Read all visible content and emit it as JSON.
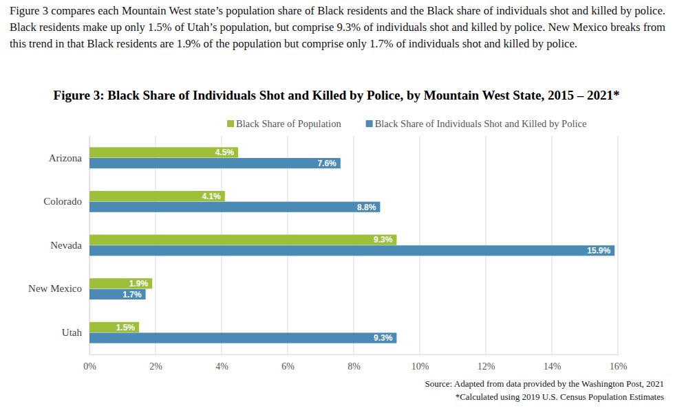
{
  "chart_data": {
    "type": "bar",
    "orientation": "horizontal",
    "title": "Figure 3: Black Share of Individuals Shot and Killed by Police, by Mountain West State, 2015 – 2021*",
    "annotations": [
      "Figure 3 compares each Mountain West state’s population share of Black residents and the Black share of individuals shot and killed by police. Black residents make up only 1.5% of Utah’s population, but comprise 9.3% of individuals shot and killed by police. New Mexico breaks from this trend in that Black residents are 1.9% of the population but comprise only 1.7% of individuals shot and killed by police.",
      "Source: Adapted from data provided by the Washington Post, 2021",
      "*Calculated using 2019 U.S. Census Population Estimates"
    ],
    "categories": [
      "Arizona",
      "Colorado",
      "Nevada",
      "New Mexico",
      "Utah"
    ],
    "series": [
      {
        "name": "Black Share of Population",
        "color": "#9dbf3a",
        "values": [
          4.5,
          4.1,
          9.3,
          1.9,
          1.5
        ],
        "value_labels": [
          "4.5%",
          "4.1%",
          "9.3%",
          "1.9%",
          "1.5%"
        ]
      },
      {
        "name": "Black Share of Individuals Shot and Killed by Police",
        "color": "#4a8ab5",
        "values": [
          7.6,
          8.8,
          15.9,
          1.7,
          9.3
        ],
        "value_labels": [
          "7.6%",
          "8.8%",
          "15.9%",
          "1.7%",
          "9.3%"
        ]
      }
    ],
    "xlim": [
      0,
      16
    ],
    "xticks": [
      {
        "value": 0,
        "label": "0%"
      },
      {
        "value": 2,
        "label": "2%"
      },
      {
        "value": 4,
        "label": "4%"
      },
      {
        "value": 6,
        "label": "6%"
      },
      {
        "value": 8,
        "label": "8%"
      },
      {
        "value": 10,
        "label": "10%"
      },
      {
        "value": 12,
        "label": "12%"
      },
      {
        "value": 14,
        "label": "14%"
      },
      {
        "value": 16,
        "label": "16%"
      }
    ],
    "grid": true,
    "legend": "top",
    "data_labels": true
  }
}
